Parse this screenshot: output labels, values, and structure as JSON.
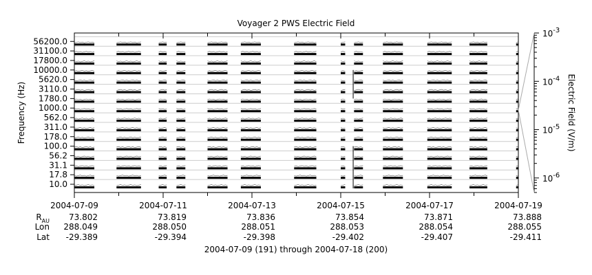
{
  "chart_data": {
    "type": "line",
    "title": "Voyager 2 PWS Electric Field",
    "ylabel": "Frequency (Hz)",
    "colorbar_label": "Electric Field (V/m)",
    "colorbar_range": [
      5e-07,
      0.001
    ],
    "colorbar_ticks": [
      {
        "value": 0.001,
        "base": "10",
        "exp": "-3"
      },
      {
        "value": 0.0001,
        "base": "10",
        "exp": "-4"
      },
      {
        "value": 1e-05,
        "base": "10",
        "exp": "-5"
      },
      {
        "value": 1e-06,
        "base": "10",
        "exp": "-6"
      }
    ],
    "channels": [
      "10.0",
      "17.8",
      "31.1",
      "56.2",
      "100.0",
      "178.0",
      "311.0",
      "562.0",
      "1000.0",
      "1780.0",
      "3110.0",
      "5620.0",
      "10000.0",
      "17800.0",
      "31100.0",
      "56200.0"
    ],
    "x_range": [
      "2004-07-09",
      "2004-07-19"
    ],
    "x_ticks": [
      "2004-07-09",
      "2004-07-11",
      "2004-07-13",
      "2004-07-15",
      "2004-07-17",
      "2004-07-19"
    ],
    "data_segments_day_offset": [
      [
        0.0,
        0.45
      ],
      [
        0.95,
        1.5
      ],
      [
        1.9,
        2.08
      ],
      [
        2.3,
        2.5
      ],
      [
        3.0,
        3.45
      ],
      [
        3.75,
        4.2
      ],
      [
        4.95,
        5.45
      ],
      [
        6.0,
        6.1
      ],
      [
        6.3,
        6.5
      ],
      [
        6.95,
        7.4
      ],
      [
        7.95,
        8.5
      ],
      [
        8.9,
        9.3
      ],
      [
        9.95,
        10.0
      ]
    ],
    "orbit_table": {
      "row_labels": [
        {
          "main": "R",
          "sub": "AU"
        },
        {
          "main": "Lon",
          "sub": ""
        },
        {
          "main": "Lat",
          "sub": ""
        }
      ],
      "columns": [
        {
          "r": "73.802",
          "lon": "288.049",
          "lat": "-29.389"
        },
        {
          "r": "73.819",
          "lon": "288.050",
          "lat": "-29.394"
        },
        {
          "r": "73.836",
          "lon": "288.051",
          "lat": "-29.398"
        },
        {
          "r": "73.854",
          "lon": "288.053",
          "lat": "-29.402"
        },
        {
          "r": "73.871",
          "lon": "288.054",
          "lat": "-29.407"
        },
        {
          "r": "73.888",
          "lon": "288.055",
          "lat": "-29.411"
        }
      ]
    },
    "footer": "2004-07-09 (191) through 2004-07-18 (200)"
  }
}
